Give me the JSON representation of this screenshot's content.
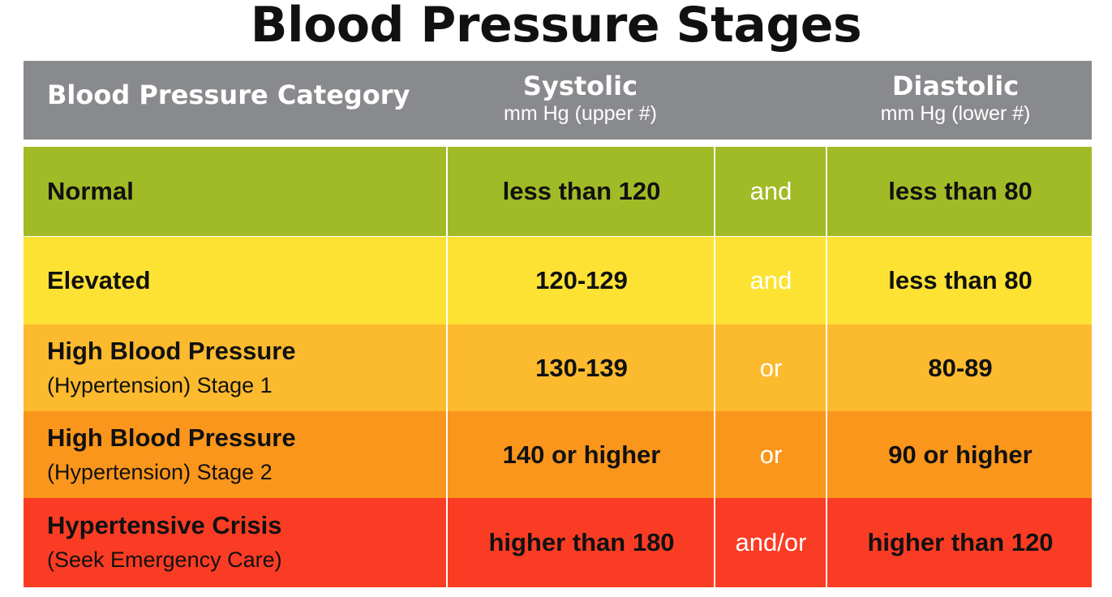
{
  "title": "Blood Pressure Stages",
  "header": {
    "category": "Blood Pressure Category",
    "systolic": "Systolic",
    "systolic_unit": "mm Hg (upper #)",
    "diastolic": "Diastolic",
    "diastolic_unit": "mm Hg (lower #)",
    "background": "#898a8d"
  },
  "rows": [
    {
      "category": "Normal",
      "category_note": "",
      "systolic": "less than 120",
      "conjunction": "and",
      "diastolic": "less than 80",
      "color": "#a0bb26"
    },
    {
      "category": "Elevated",
      "category_note": "",
      "systolic": "120-129",
      "conjunction": "and",
      "diastolic": "less than 80",
      "color": "#fde233"
    },
    {
      "category": "High Blood Pressure",
      "category_note": "(Hypertension) Stage 1",
      "systolic": "130-139",
      "conjunction": "or",
      "diastolic": "80-89",
      "color": "#fcba2f"
    },
    {
      "category": "High Blood Pressure",
      "category_note": "(Hypertension) Stage 2",
      "systolic": "140 or higher",
      "conjunction": "or",
      "diastolic": "90 or higher",
      "color": "#fb961c"
    },
    {
      "category": "Hypertensive Crisis",
      "category_note": "(Seek Emergency Care)",
      "systolic": "higher than 180",
      "conjunction": "and/or",
      "diastolic": "higher than 120",
      "color": "#fb3c24"
    }
  ]
}
